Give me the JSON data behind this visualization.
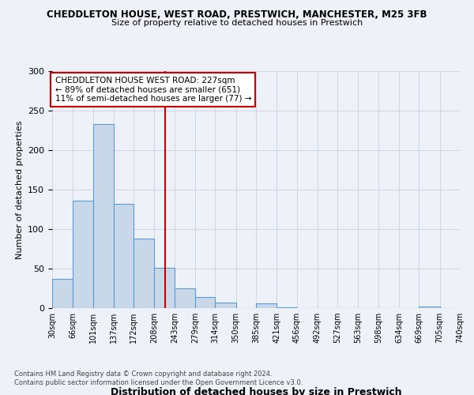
{
  "title1": "CHEDDLETON HOUSE, WEST ROAD, PRESTWICH, MANCHESTER, M25 3FB",
  "title2": "Size of property relative to detached houses in Prestwich",
  "xlabel": "Distribution of detached houses by size in Prestwich",
  "ylabel": "Number of detached properties",
  "bin_edges": [
    30,
    66,
    101,
    137,
    172,
    208,
    243,
    279,
    314,
    350,
    385,
    421,
    456,
    492,
    527,
    563,
    598,
    634,
    669,
    705,
    740
  ],
  "bar_heights": [
    37,
    136,
    233,
    132,
    88,
    51,
    25,
    14,
    7,
    0,
    6,
    1,
    0,
    0,
    0,
    0,
    0,
    0,
    2,
    0
  ],
  "bar_color": "#c8d8e8",
  "bar_edge_color": "#5b9bd5",
  "vline_x": 227,
  "vline_color": "#cc0000",
  "annotation_line1": "CHEDDLETON HOUSE WEST ROAD: 227sqm",
  "annotation_line2": "← 89% of detached houses are smaller (651)",
  "annotation_line3": "11% of semi-detached houses are larger (77) →",
  "annotation_box_color": "#ffffff",
  "annotation_box_edge_color": "#cc0000",
  "ylim": [
    0,
    300
  ],
  "yticks": [
    0,
    50,
    100,
    150,
    200,
    250,
    300
  ],
  "xtick_labels": [
    "30sqm",
    "66sqm",
    "101sqm",
    "137sqm",
    "172sqm",
    "208sqm",
    "243sqm",
    "279sqm",
    "314sqm",
    "350sqm",
    "385sqm",
    "421sqm",
    "456sqm",
    "492sqm",
    "527sqm",
    "563sqm",
    "598sqm",
    "634sqm",
    "669sqm",
    "705sqm",
    "740sqm"
  ],
  "grid_color": "#d0d8e8",
  "bg_color": "#eef2f8",
  "footnote1": "Contains HM Land Registry data © Crown copyright and database right 2024.",
  "footnote2": "Contains public sector information licensed under the Open Government Licence v3.0."
}
